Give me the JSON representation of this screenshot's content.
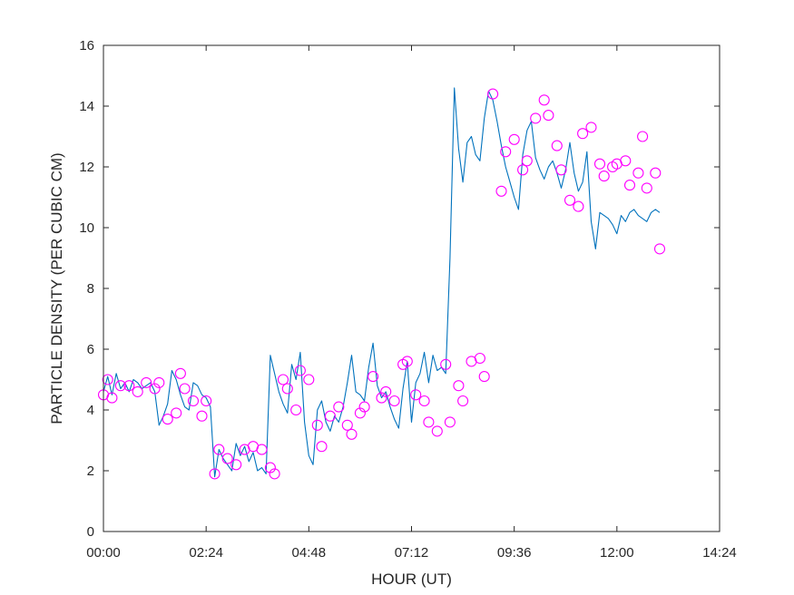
{
  "chart_data": {
    "type": "line",
    "title": "",
    "xlabel": "HOUR (UT)",
    "ylabel": "PARTICLE  DENSITY (PER CUBIC CM)",
    "xlim_hours": [
      0,
      14.4
    ],
    "ylim": [
      0,
      16
    ],
    "x_ticks": [
      "00:00",
      "02:24",
      "04:48",
      "07:12",
      "09:36",
      "12:00",
      "14:24"
    ],
    "y_ticks": [
      0,
      2,
      4,
      6,
      8,
      10,
      12,
      14,
      16
    ],
    "grid": false,
    "legend": "none",
    "colors": {
      "line": "#0072BD",
      "markers": "#FF00FF",
      "axes": "#262626"
    },
    "series": [
      {
        "style": "line",
        "x_hours": [
          0.0,
          0.1,
          0.2,
          0.3,
          0.4,
          0.5,
          0.6,
          0.7,
          0.8,
          0.9,
          1.0,
          1.1,
          1.2,
          1.3,
          1.4,
          1.5,
          1.6,
          1.7,
          1.8,
          1.9,
          2.0,
          2.1,
          2.2,
          2.3,
          2.4,
          2.5,
          2.6,
          2.7,
          2.8,
          2.9,
          3.0,
          3.1,
          3.2,
          3.3,
          3.4,
          3.5,
          3.6,
          3.7,
          3.8,
          3.9,
          4.0,
          4.1,
          4.2,
          4.3,
          4.4,
          4.5,
          4.6,
          4.7,
          4.8,
          4.9,
          5.0,
          5.1,
          5.2,
          5.3,
          5.4,
          5.5,
          5.6,
          5.7,
          5.8,
          5.9,
          6.0,
          6.1,
          6.2,
          6.3,
          6.4,
          6.5,
          6.6,
          6.7,
          6.8,
          6.9,
          7.0,
          7.1,
          7.2,
          7.3,
          7.4,
          7.5,
          7.6,
          7.7,
          7.8,
          7.9,
          8.0,
          8.1,
          8.2,
          8.3,
          8.4,
          8.5,
          8.6,
          8.7,
          8.8,
          8.9,
          9.0,
          9.1,
          9.2,
          9.3,
          9.4,
          9.5,
          9.6,
          9.7,
          9.8,
          9.9,
          10.0,
          10.1,
          10.2,
          10.3,
          10.4,
          10.5,
          10.6,
          10.7,
          10.8,
          10.9,
          11.0,
          11.1,
          11.2,
          11.3,
          11.4,
          11.5,
          11.6,
          11.7,
          11.8,
          11.9,
          12.0,
          12.1,
          12.2,
          12.3,
          12.4,
          12.5,
          12.6,
          12.7,
          12.8,
          12.9,
          13.0
        ],
        "values": [
          4.6,
          5.1,
          4.5,
          5.2,
          4.7,
          4.9,
          4.6,
          5.0,
          4.9,
          4.7,
          4.8,
          4.9,
          4.6,
          3.5,
          3.8,
          4.2,
          5.3,
          5.0,
          4.5,
          4.1,
          4.0,
          4.9,
          4.8,
          4.5,
          4.4,
          4.1,
          1.8,
          2.7,
          2.4,
          2.2,
          2.0,
          2.9,
          2.5,
          2.8,
          2.3,
          2.6,
          2.0,
          2.1,
          1.9,
          5.8,
          5.2,
          4.6,
          4.2,
          3.9,
          5.5,
          5.0,
          5.9,
          3.6,
          2.5,
          2.2,
          4.0,
          4.3,
          3.6,
          3.3,
          3.8,
          3.6,
          4.1,
          4.9,
          5.8,
          4.6,
          4.5,
          4.3,
          5.4,
          6.2,
          4.8,
          4.4,
          4.6,
          4.1,
          3.7,
          3.4,
          4.7,
          5.6,
          3.6,
          4.9,
          5.2,
          5.9,
          4.9,
          5.8,
          5.3,
          5.4,
          5.2,
          9.0,
          14.6,
          12.6,
          11.5,
          12.8,
          13.0,
          12.4,
          12.2,
          13.6,
          14.5,
          14.2,
          13.5,
          12.7,
          12.0,
          11.5,
          11.0,
          10.6,
          12.4,
          13.2,
          13.5,
          12.3,
          11.9,
          11.6,
          12.0,
          12.2,
          11.8,
          11.3,
          11.9,
          12.8,
          11.8,
          11.2,
          11.5,
          12.5,
          10.2,
          9.3,
          10.5,
          10.4,
          10.3,
          10.1,
          9.8,
          10.4,
          10.2,
          10.5,
          10.6,
          10.4,
          10.3,
          10.2,
          10.5,
          10.6,
          10.5
        ]
      },
      {
        "style": "markers",
        "x_hours": [
          0.0,
          0.1,
          0.2,
          0.4,
          0.6,
          0.8,
          1.0,
          1.2,
          1.3,
          1.5,
          1.7,
          1.8,
          1.9,
          2.1,
          2.3,
          2.4,
          2.6,
          2.7,
          2.9,
          3.1,
          3.3,
          3.5,
          3.7,
          3.9,
          4.0,
          4.2,
          4.3,
          4.5,
          4.6,
          4.8,
          5.0,
          5.1,
          5.3,
          5.5,
          5.7,
          5.8,
          6.0,
          6.1,
          6.3,
          6.5,
          6.6,
          6.8,
          7.0,
          7.1,
          7.3,
          7.5,
          7.6,
          7.8,
          8.0,
          8.1,
          8.3,
          8.4,
          8.6,
          8.8,
          8.9,
          9.1,
          9.3,
          9.4,
          9.6,
          9.8,
          9.9,
          10.1,
          10.3,
          10.4,
          10.6,
          10.7,
          10.9,
          11.1,
          11.2,
          11.4,
          11.6,
          11.7,
          11.9,
          12.0,
          12.2,
          12.3,
          12.5,
          12.6,
          12.7,
          12.9,
          13.0
        ],
        "values": [
          4.5,
          5.0,
          4.4,
          4.8,
          4.8,
          4.6,
          4.9,
          4.7,
          4.9,
          3.7,
          3.9,
          5.2,
          4.7,
          4.3,
          3.8,
          4.3,
          1.9,
          2.7,
          2.4,
          2.2,
          2.7,
          2.8,
          2.7,
          2.1,
          1.9,
          5.0,
          4.7,
          4.0,
          5.3,
          5.0,
          3.5,
          2.8,
          3.8,
          4.1,
          3.5,
          3.2,
          3.9,
          4.1,
          5.1,
          4.4,
          4.6,
          4.3,
          5.5,
          5.6,
          4.5,
          4.3,
          3.6,
          3.3,
          5.5,
          3.6,
          4.8,
          4.3,
          5.6,
          5.7,
          5.1,
          14.4,
          11.2,
          12.5,
          12.9,
          11.9,
          12.2,
          13.6,
          14.2,
          13.7,
          12.7,
          11.9,
          10.9,
          10.7,
          13.1,
          13.3,
          12.1,
          11.7,
          12.0,
          12.1,
          12.2,
          11.4,
          11.8,
          13.0,
          11.3,
          11.8,
          9.3
        ]
      }
    ]
  }
}
